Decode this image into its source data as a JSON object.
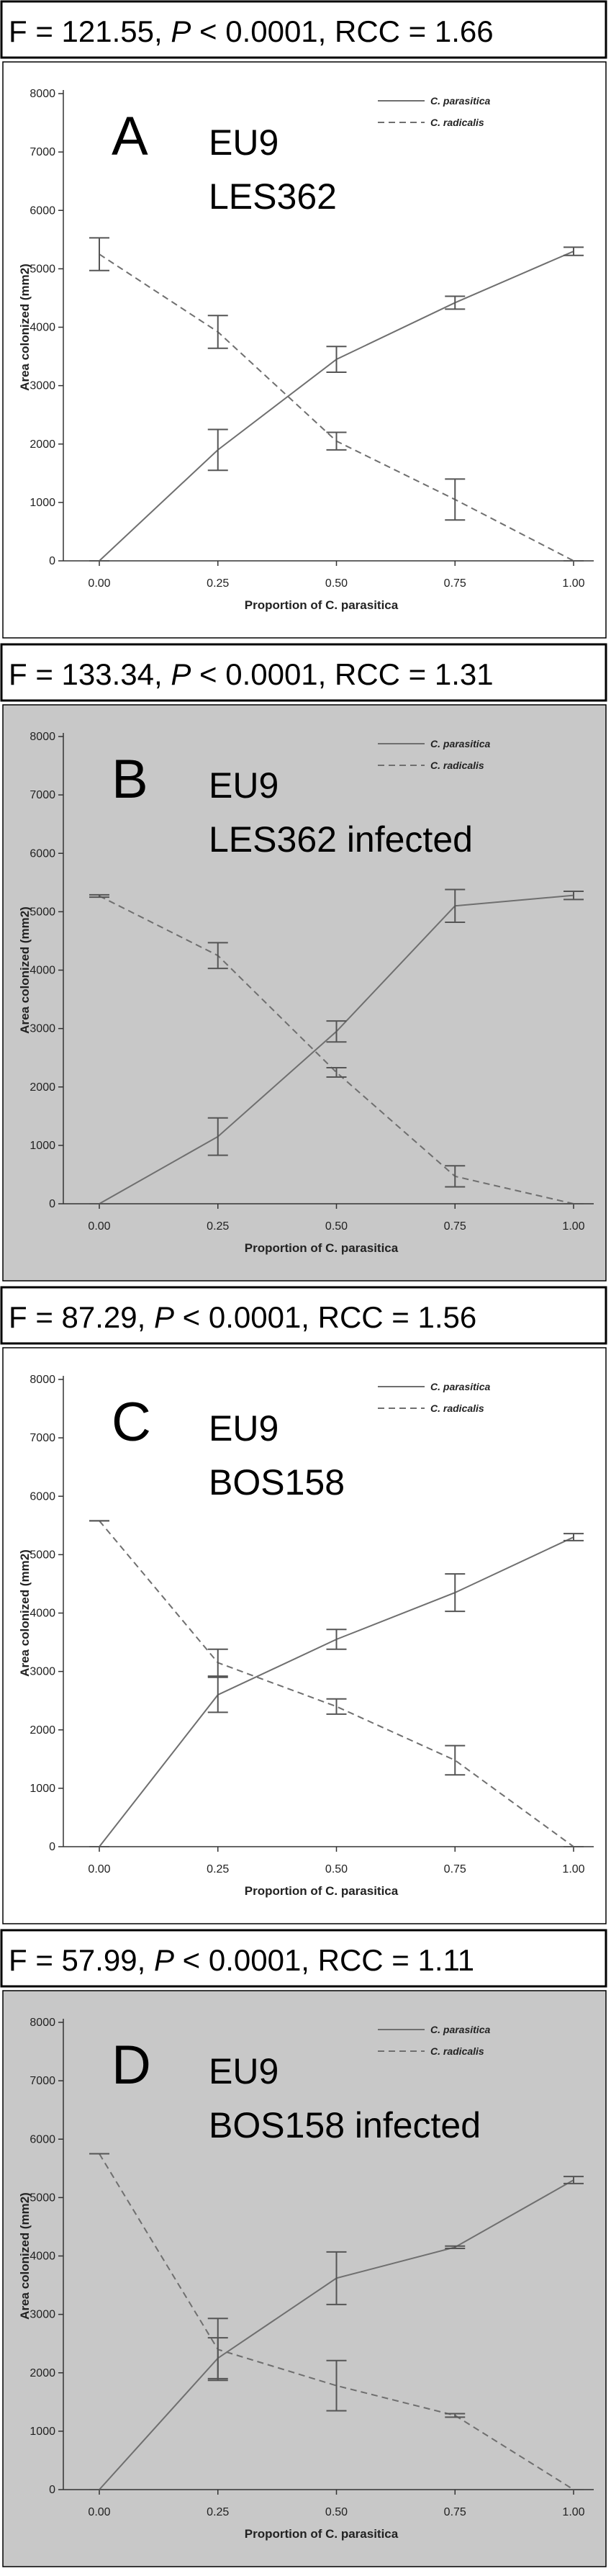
{
  "colors": {
    "panel_white": "#ffffff",
    "panel_gray": "#c8c8c8",
    "line": "#6f6f6f"
  },
  "chart_data": [
    {
      "type": "line",
      "stat_prefix": "F = 121.55, ",
      "stat_p_letter": "P",
      "stat_suffix": " < 0.0001, RCC = 1.66",
      "letter": "A",
      "label_line1": "EU9",
      "label_line2": "LES362",
      "background": "white",
      "xlabel": "Proportion of C. parasitica",
      "ylabel": "Area colonized (mm2)",
      "x": [
        0.0,
        0.25,
        0.5,
        0.75,
        1.0
      ],
      "x_tick_labels": [
        "0.00",
        "0.25",
        "0.50",
        "0.75",
        "1.00"
      ],
      "ylim": [
        0,
        8000
      ],
      "y_ticks": [
        0,
        1000,
        2000,
        3000,
        4000,
        5000,
        6000,
        7000,
        8000
      ],
      "grid": false,
      "legend_position": "top-right",
      "series": [
        {
          "name": "C. parasitica",
          "style": "solid",
          "values": [
            0,
            1900,
            3450,
            4420,
            5300
          ],
          "err": [
            0,
            350,
            220,
            110,
            70
          ]
        },
        {
          "name": "C. radicalis",
          "style": "dashed",
          "values": [
            5250,
            3920,
            2050,
            1050,
            0
          ],
          "err": [
            280,
            280,
            150,
            350,
            0
          ]
        }
      ]
    },
    {
      "type": "line",
      "stat_prefix": "F = 133.34, ",
      "stat_p_letter": "P",
      "stat_suffix": " < 0.0001, RCC = 1.31",
      "letter": "B",
      "label_line1": "EU9",
      "label_line2": "LES362 infected",
      "background": "gray",
      "xlabel": "Proportion of C. parasitica",
      "ylabel": "Area colonized (mm2)",
      "x": [
        0.0,
        0.25,
        0.5,
        0.75,
        1.0
      ],
      "x_tick_labels": [
        "0.00",
        "0.25",
        "0.50",
        "0.75",
        "1.00"
      ],
      "ylim": [
        0,
        8000
      ],
      "y_ticks": [
        0,
        1000,
        2000,
        3000,
        4000,
        5000,
        6000,
        7000,
        8000
      ],
      "grid": false,
      "legend_position": "top-right",
      "series": [
        {
          "name": "C. parasitica",
          "style": "solid",
          "values": [
            0,
            1150,
            2950,
            5100,
            5280
          ],
          "err": [
            0,
            320,
            180,
            280,
            70
          ]
        },
        {
          "name": "C. radicalis",
          "style": "dashed",
          "values": [
            5270,
            4250,
            2250,
            470,
            0
          ],
          "err": [
            20,
            220,
            80,
            180,
            0
          ]
        }
      ]
    },
    {
      "type": "line",
      "stat_prefix": "F = 87.29, ",
      "stat_p_letter": "P",
      "stat_suffix": " < 0.0001, RCC = 1.56",
      "letter": "C",
      "label_line1": "EU9",
      "label_line2": "BOS158",
      "background": "white",
      "xlabel": "Proportion of C. parasitica",
      "ylabel": "Area colonized (mm2)",
      "x": [
        0.0,
        0.25,
        0.5,
        0.75,
        1.0
      ],
      "x_tick_labels": [
        "0.00",
        "0.25",
        "0.50",
        "0.75",
        "1.00"
      ],
      "ylim": [
        0,
        8000
      ],
      "y_ticks": [
        0,
        1000,
        2000,
        3000,
        4000,
        5000,
        6000,
        7000,
        8000
      ],
      "grid": false,
      "legend_position": "top-right",
      "series": [
        {
          "name": "C. parasitica",
          "style": "solid",
          "values": [
            0,
            2600,
            3550,
            4350,
            5300
          ],
          "err": [
            0,
            300,
            170,
            320,
            60
          ]
        },
        {
          "name": "C. radicalis",
          "style": "dashed",
          "values": [
            5580,
            3150,
            2400,
            1480,
            0
          ],
          "err": [
            0,
            230,
            130,
            250,
            0
          ]
        }
      ]
    },
    {
      "type": "line",
      "stat_prefix": "F = 57.99, ",
      "stat_p_letter": "P",
      "stat_suffix": " < 0.0001, RCC = 1.11",
      "letter": "D",
      "label_line1": "EU9",
      "label_line2": "BOS158 infected",
      "background": "gray",
      "xlabel": "Proportion of C. parasitica",
      "ylabel": "Area colonized (mm2)",
      "x": [
        0.0,
        0.25,
        0.5,
        0.75,
        1.0
      ],
      "x_tick_labels": [
        "0.00",
        "0.25",
        "0.50",
        "0.75",
        "1.00"
      ],
      "ylim": [
        0,
        8000
      ],
      "y_ticks": [
        0,
        1000,
        2000,
        3000,
        4000,
        5000,
        6000,
        7000,
        8000
      ],
      "grid": false,
      "legend_position": "top-right",
      "series": [
        {
          "name": "C. parasitica",
          "style": "solid",
          "values": [
            0,
            2250,
            3620,
            4150,
            5300
          ],
          "err": [
            0,
            350,
            450,
            20,
            60
          ]
        },
        {
          "name": "C. radicalis",
          "style": "dashed",
          "values": [
            5750,
            2400,
            1780,
            1270,
            0
          ],
          "err": [
            0,
            530,
            430,
            30,
            0
          ]
        }
      ]
    }
  ]
}
